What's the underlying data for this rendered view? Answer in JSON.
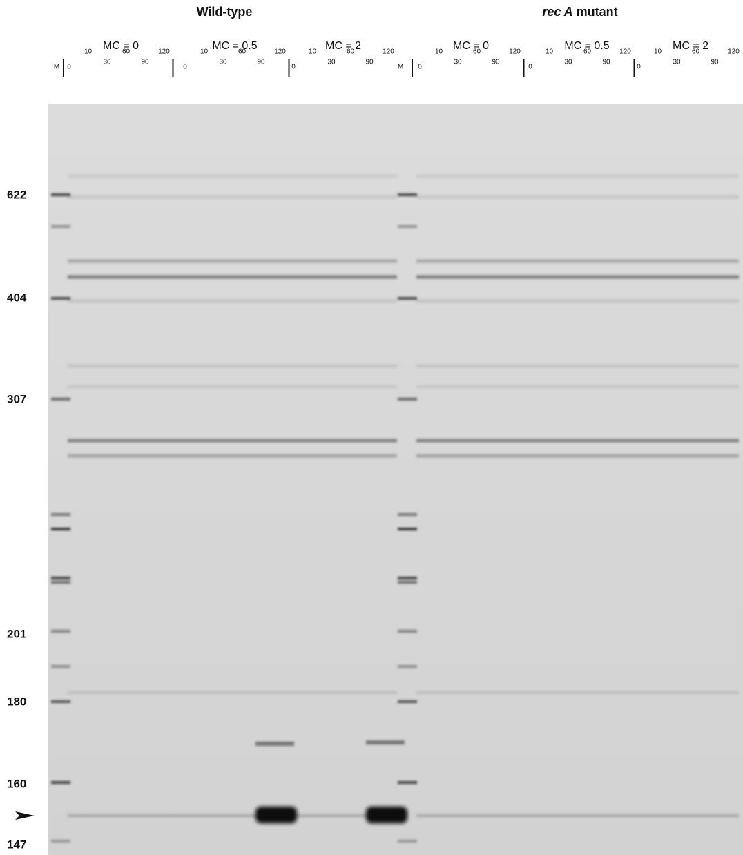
{
  "groups": [
    {
      "title": "Wild-type",
      "marker_lane": "M",
      "conditions": [
        {
          "label": "MC = 0",
          "lanes": [
            0,
            10,
            30,
            60,
            90,
            120
          ]
        },
        {
          "label": "MC = 0.5",
          "lanes": [
            0,
            10,
            30,
            60,
            90,
            120
          ]
        },
        {
          "label": "MC = 2",
          "lanes": [
            0,
            10,
            30,
            60,
            90,
            120
          ]
        }
      ]
    },
    {
      "title_italic": "rec A",
      "title": "mutant",
      "marker_lane": "M",
      "conditions": [
        {
          "label": "MC = 0",
          "lanes": [
            0,
            10,
            30,
            60,
            90,
            120
          ]
        },
        {
          "label": "MC = 0.5",
          "lanes": [
            0,
            10,
            30,
            60,
            90,
            120
          ]
        },
        {
          "label": "MC = 2",
          "lanes": [
            0,
            10,
            30,
            60,
            90,
            120
          ]
        }
      ]
    }
  ],
  "size_markers": [
    "622",
    "404",
    "307",
    "201",
    "180",
    "160",
    "147"
  ]
}
